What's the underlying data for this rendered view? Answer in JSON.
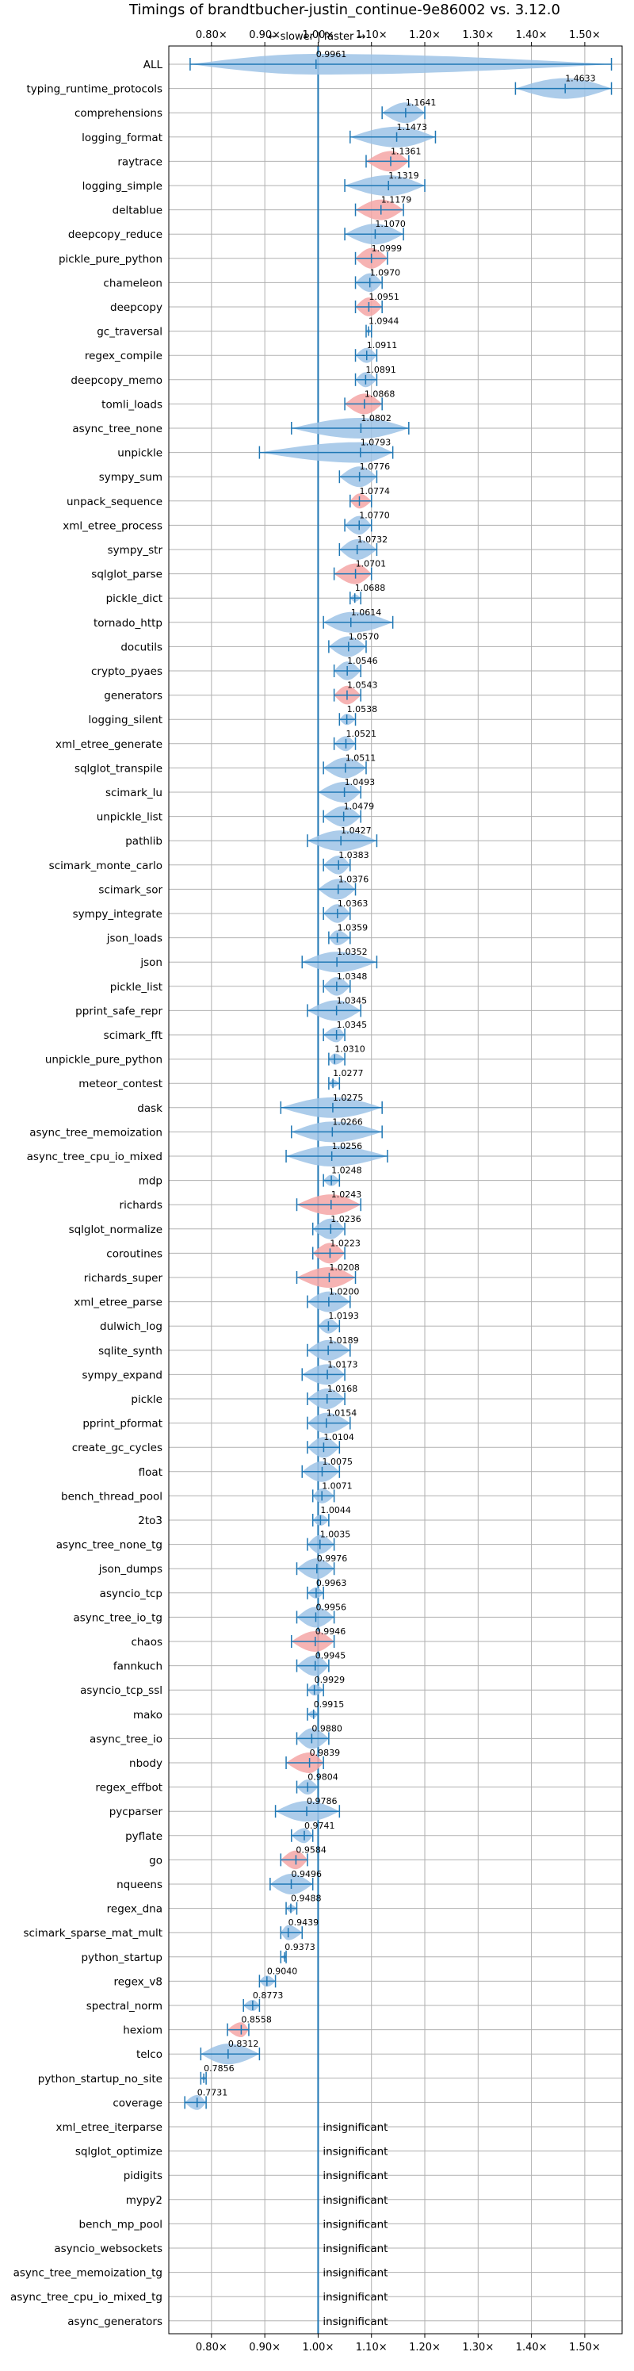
{
  "chart_data": {
    "type": "violin",
    "title": "Timings of brandtbucher-justin_continue-9e86002 vs. 3.12.0",
    "subtitle": "← slower | faster →",
    "xlim": [
      0.72,
      1.57
    ],
    "xticks": [
      "0.80×",
      "0.90×",
      "1.00×",
      "1.10×",
      "1.20×",
      "1.30×",
      "1.40×",
      "1.50×"
    ],
    "xtick_values": [
      0.8,
      0.9,
      1.0,
      1.1,
      1.2,
      1.3,
      1.4,
      1.5
    ],
    "reference_line": 1.0,
    "grid": true,
    "colors": {
      "normal": "#9dc3e6",
      "highlight": "#f4a6a6",
      "line": "#1f77b4"
    },
    "insignificant_label": "insignificant",
    "benchmarks": [
      {
        "name": "ALL",
        "value": 0.9961,
        "label": "0.9961",
        "min": 0.76,
        "max": 1.55,
        "hl": false
      },
      {
        "name": "typing_runtime_protocols",
        "value": 1.4633,
        "label": "1.4633",
        "min": 1.37,
        "max": 1.55,
        "hl": false
      },
      {
        "name": "comprehensions",
        "value": 1.1641,
        "label": "1.1641",
        "min": 1.12,
        "max": 1.2,
        "hl": false
      },
      {
        "name": "logging_format",
        "value": 1.1473,
        "label": "1.1473",
        "min": 1.06,
        "max": 1.22,
        "hl": false
      },
      {
        "name": "raytrace",
        "value": 1.1361,
        "label": "1.1361",
        "min": 1.09,
        "max": 1.17,
        "hl": true
      },
      {
        "name": "logging_simple",
        "value": 1.1319,
        "label": "1.1319",
        "min": 1.05,
        "max": 1.2,
        "hl": false
      },
      {
        "name": "deltablue",
        "value": 1.1179,
        "label": "1.1179",
        "min": 1.07,
        "max": 1.16,
        "hl": true
      },
      {
        "name": "deepcopy_reduce",
        "value": 1.107,
        "label": "1.1070",
        "min": 1.05,
        "max": 1.16,
        "hl": false
      },
      {
        "name": "pickle_pure_python",
        "value": 1.0999,
        "label": "1.0999",
        "min": 1.07,
        "max": 1.13,
        "hl": true
      },
      {
        "name": "chameleon",
        "value": 1.097,
        "label": "1.0970",
        "min": 1.07,
        "max": 1.12,
        "hl": false
      },
      {
        "name": "deepcopy",
        "value": 1.0951,
        "label": "1.0951",
        "min": 1.07,
        "max": 1.12,
        "hl": true
      },
      {
        "name": "gc_traversal",
        "value": 1.0944,
        "label": "1.0944",
        "min": 1.09,
        "max": 1.1,
        "hl": false
      },
      {
        "name": "regex_compile",
        "value": 1.0911,
        "label": "1.0911",
        "min": 1.07,
        "max": 1.11,
        "hl": false
      },
      {
        "name": "deepcopy_memo",
        "value": 1.0891,
        "label": "1.0891",
        "min": 1.07,
        "max": 1.11,
        "hl": false
      },
      {
        "name": "tomli_loads",
        "value": 1.0868,
        "label": "1.0868",
        "min": 1.05,
        "max": 1.12,
        "hl": true
      },
      {
        "name": "async_tree_none",
        "value": 1.0802,
        "label": "1.0802",
        "min": 0.95,
        "max": 1.17,
        "hl": false
      },
      {
        "name": "unpickle",
        "value": 1.0793,
        "label": "1.0793",
        "min": 0.89,
        "max": 1.14,
        "hl": false
      },
      {
        "name": "sympy_sum",
        "value": 1.0776,
        "label": "1.0776",
        "min": 1.04,
        "max": 1.11,
        "hl": false
      },
      {
        "name": "unpack_sequence",
        "value": 1.0774,
        "label": "1.0774",
        "min": 1.06,
        "max": 1.1,
        "hl": true
      },
      {
        "name": "xml_etree_process",
        "value": 1.077,
        "label": "1.0770",
        "min": 1.05,
        "max": 1.1,
        "hl": false
      },
      {
        "name": "sympy_str",
        "value": 1.0732,
        "label": "1.0732",
        "min": 1.04,
        "max": 1.11,
        "hl": false
      },
      {
        "name": "sqlglot_parse",
        "value": 1.0701,
        "label": "1.0701",
        "min": 1.03,
        "max": 1.1,
        "hl": true
      },
      {
        "name": "pickle_dict",
        "value": 1.0688,
        "label": "1.0688",
        "min": 1.06,
        "max": 1.08,
        "hl": false
      },
      {
        "name": "tornado_http",
        "value": 1.0614,
        "label": "1.0614",
        "min": 1.01,
        "max": 1.14,
        "hl": false
      },
      {
        "name": "docutils",
        "value": 1.057,
        "label": "1.0570",
        "min": 1.02,
        "max": 1.09,
        "hl": false
      },
      {
        "name": "crypto_pyaes",
        "value": 1.0546,
        "label": "1.0546",
        "min": 1.03,
        "max": 1.08,
        "hl": false
      },
      {
        "name": "generators",
        "value": 1.0543,
        "label": "1.0543",
        "min": 1.03,
        "max": 1.08,
        "hl": true
      },
      {
        "name": "logging_silent",
        "value": 1.0538,
        "label": "1.0538",
        "min": 1.04,
        "max": 1.07,
        "hl": false
      },
      {
        "name": "xml_etree_generate",
        "value": 1.0521,
        "label": "1.0521",
        "min": 1.03,
        "max": 1.07,
        "hl": false
      },
      {
        "name": "sqlglot_transpile",
        "value": 1.0511,
        "label": "1.0511",
        "min": 1.01,
        "max": 1.09,
        "hl": false
      },
      {
        "name": "scimark_lu",
        "value": 1.0493,
        "label": "1.0493",
        "min": 1.0,
        "max": 1.08,
        "hl": false
      },
      {
        "name": "unpickle_list",
        "value": 1.0479,
        "label": "1.0479",
        "min": 1.01,
        "max": 1.08,
        "hl": false
      },
      {
        "name": "pathlib",
        "value": 1.0427,
        "label": "1.0427",
        "min": 0.98,
        "max": 1.11,
        "hl": false
      },
      {
        "name": "scimark_monte_carlo",
        "value": 1.0383,
        "label": "1.0383",
        "min": 1.01,
        "max": 1.06,
        "hl": false
      },
      {
        "name": "scimark_sor",
        "value": 1.0376,
        "label": "1.0376",
        "min": 1.0,
        "max": 1.07,
        "hl": false
      },
      {
        "name": "sympy_integrate",
        "value": 1.0363,
        "label": "1.0363",
        "min": 1.01,
        "max": 1.06,
        "hl": false
      },
      {
        "name": "json_loads",
        "value": 1.0359,
        "label": "1.0359",
        "min": 1.02,
        "max": 1.06,
        "hl": false
      },
      {
        "name": "json",
        "value": 1.0352,
        "label": "1.0352",
        "min": 0.97,
        "max": 1.11,
        "hl": false
      },
      {
        "name": "pickle_list",
        "value": 1.0348,
        "label": "1.0348",
        "min": 1.01,
        "max": 1.06,
        "hl": false
      },
      {
        "name": "pprint_safe_repr",
        "value": 1.0345,
        "label": "1.0345",
        "min": 0.98,
        "max": 1.08,
        "hl": false
      },
      {
        "name": "scimark_fft",
        "value": 1.0345,
        "label": "1.0345",
        "min": 1.01,
        "max": 1.05,
        "hl": false
      },
      {
        "name": "unpickle_pure_python",
        "value": 1.031,
        "label": "1.0310",
        "min": 1.02,
        "max": 1.05,
        "hl": false
      },
      {
        "name": "meteor_contest",
        "value": 1.0277,
        "label": "1.0277",
        "min": 1.02,
        "max": 1.04,
        "hl": false
      },
      {
        "name": "dask",
        "value": 1.0275,
        "label": "1.0275",
        "min": 0.93,
        "max": 1.12,
        "hl": false
      },
      {
        "name": "async_tree_memoization",
        "value": 1.0266,
        "label": "1.0266",
        "min": 0.95,
        "max": 1.12,
        "hl": false
      },
      {
        "name": "async_tree_cpu_io_mixed",
        "value": 1.0256,
        "label": "1.0256",
        "min": 0.94,
        "max": 1.13,
        "hl": false
      },
      {
        "name": "mdp",
        "value": 1.0248,
        "label": "1.0248",
        "min": 1.01,
        "max": 1.04,
        "hl": false
      },
      {
        "name": "richards",
        "value": 1.0243,
        "label": "1.0243",
        "min": 0.96,
        "max": 1.08,
        "hl": true
      },
      {
        "name": "sqlglot_normalize",
        "value": 1.0236,
        "label": "1.0236",
        "min": 0.99,
        "max": 1.05,
        "hl": false
      },
      {
        "name": "coroutines",
        "value": 1.0223,
        "label": "1.0223",
        "min": 0.99,
        "max": 1.05,
        "hl": true
      },
      {
        "name": "richards_super",
        "value": 1.0208,
        "label": "1.0208",
        "min": 0.96,
        "max": 1.07,
        "hl": true
      },
      {
        "name": "xml_etree_parse",
        "value": 1.02,
        "label": "1.0200",
        "min": 0.98,
        "max": 1.06,
        "hl": false
      },
      {
        "name": "dulwich_log",
        "value": 1.0193,
        "label": "1.0193",
        "min": 1.0,
        "max": 1.04,
        "hl": false
      },
      {
        "name": "sqlite_synth",
        "value": 1.0189,
        "label": "1.0189",
        "min": 0.98,
        "max": 1.06,
        "hl": false
      },
      {
        "name": "sympy_expand",
        "value": 1.0173,
        "label": "1.0173",
        "min": 0.97,
        "max": 1.05,
        "hl": false
      },
      {
        "name": "pickle",
        "value": 1.0168,
        "label": "1.0168",
        "min": 0.98,
        "max": 1.05,
        "hl": false
      },
      {
        "name": "pprint_pformat",
        "value": 1.0154,
        "label": "1.0154",
        "min": 0.98,
        "max": 1.06,
        "hl": false
      },
      {
        "name": "create_gc_cycles",
        "value": 1.0104,
        "label": "1.0104",
        "min": 0.98,
        "max": 1.04,
        "hl": false
      },
      {
        "name": "float",
        "value": 1.0075,
        "label": "1.0075",
        "min": 0.97,
        "max": 1.04,
        "hl": false
      },
      {
        "name": "bench_thread_pool",
        "value": 1.0071,
        "label": "1.0071",
        "min": 0.99,
        "max": 1.03,
        "hl": false
      },
      {
        "name": "2to3",
        "value": 1.0044,
        "label": "1.0044",
        "min": 0.99,
        "max": 1.02,
        "hl": false
      },
      {
        "name": "async_tree_none_tg",
        "value": 1.0035,
        "label": "1.0035",
        "min": 0.98,
        "max": 1.03,
        "hl": false
      },
      {
        "name": "json_dumps",
        "value": 0.9976,
        "label": "0.9976",
        "min": 0.96,
        "max": 1.03,
        "hl": false
      },
      {
        "name": "asyncio_tcp",
        "value": 0.9963,
        "label": "0.9963",
        "min": 0.98,
        "max": 1.01,
        "hl": false
      },
      {
        "name": "async_tree_io_tg",
        "value": 0.9956,
        "label": "0.9956",
        "min": 0.96,
        "max": 1.03,
        "hl": false
      },
      {
        "name": "chaos",
        "value": 0.9946,
        "label": "0.9946",
        "min": 0.95,
        "max": 1.03,
        "hl": true
      },
      {
        "name": "fannkuch",
        "value": 0.9945,
        "label": "0.9945",
        "min": 0.96,
        "max": 1.02,
        "hl": false
      },
      {
        "name": "asyncio_tcp_ssl",
        "value": 0.9929,
        "label": "0.9929",
        "min": 0.98,
        "max": 1.01,
        "hl": false
      },
      {
        "name": "mako",
        "value": 0.9915,
        "label": "0.9915",
        "min": 0.98,
        "max": 1.0,
        "hl": false
      },
      {
        "name": "async_tree_io",
        "value": 0.988,
        "label": "0.9880",
        "min": 0.96,
        "max": 1.02,
        "hl": false
      },
      {
        "name": "nbody",
        "value": 0.9839,
        "label": "0.9839",
        "min": 0.94,
        "max": 1.01,
        "hl": true
      },
      {
        "name": "regex_effbot",
        "value": 0.9804,
        "label": "0.9804",
        "min": 0.96,
        "max": 1.0,
        "hl": false
      },
      {
        "name": "pycparser",
        "value": 0.9786,
        "label": "0.9786",
        "min": 0.92,
        "max": 1.04,
        "hl": false
      },
      {
        "name": "pyflate",
        "value": 0.9741,
        "label": "0.9741",
        "min": 0.95,
        "max": 0.99,
        "hl": false
      },
      {
        "name": "go",
        "value": 0.9584,
        "label": "0.9584",
        "min": 0.93,
        "max": 0.98,
        "hl": true
      },
      {
        "name": "nqueens",
        "value": 0.9496,
        "label": "0.9496",
        "min": 0.91,
        "max": 0.99,
        "hl": false
      },
      {
        "name": "regex_dna",
        "value": 0.9488,
        "label": "0.9488",
        "min": 0.94,
        "max": 0.96,
        "hl": false
      },
      {
        "name": "scimark_sparse_mat_mult",
        "value": 0.9439,
        "label": "0.9439",
        "min": 0.93,
        "max": 0.97,
        "hl": false
      },
      {
        "name": "python_startup",
        "value": 0.9373,
        "label": "0.9373",
        "min": 0.93,
        "max": 0.94,
        "hl": false
      },
      {
        "name": "regex_v8",
        "value": 0.904,
        "label": "0.9040",
        "min": 0.89,
        "max": 0.92,
        "hl": false
      },
      {
        "name": "spectral_norm",
        "value": 0.8773,
        "label": "0.8773",
        "min": 0.86,
        "max": 0.89,
        "hl": false
      },
      {
        "name": "hexiom",
        "value": 0.8558,
        "label": "0.8558",
        "min": 0.83,
        "max": 0.87,
        "hl": true
      },
      {
        "name": "telco",
        "value": 0.8312,
        "label": "0.8312",
        "min": 0.78,
        "max": 0.89,
        "hl": false
      },
      {
        "name": "python_startup_no_site",
        "value": 0.7856,
        "label": "0.7856",
        "min": 0.78,
        "max": 0.79,
        "hl": false
      },
      {
        "name": "coverage",
        "value": 0.7731,
        "label": "0.7731",
        "min": 0.75,
        "max": 0.79,
        "hl": false
      },
      {
        "name": "xml_etree_iterparse",
        "insignificant": true
      },
      {
        "name": "sqlglot_optimize",
        "insignificant": true
      },
      {
        "name": "pidigits",
        "insignificant": true
      },
      {
        "name": "mypy2",
        "insignificant": true
      },
      {
        "name": "bench_mp_pool",
        "insignificant": true
      },
      {
        "name": "asyncio_websockets",
        "insignificant": true
      },
      {
        "name": "async_tree_memoization_tg",
        "insignificant": true
      },
      {
        "name": "async_tree_cpu_io_mixed_tg",
        "insignificant": true
      },
      {
        "name": "async_generators",
        "insignificant": true
      }
    ]
  }
}
